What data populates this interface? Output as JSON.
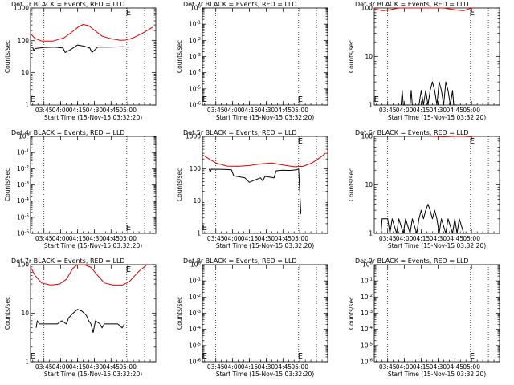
{
  "chart_data": [
    {
      "type": "line",
      "title": "Det 1r BLACK = Events, RED = LLD",
      "xlabel": "Start Time (15-Nov-15 03:32:20)",
      "ylabel": "Counts/sec",
      "yscale": "log",
      "ylim": [
        1,
        1000
      ],
      "yticks": [
        "1",
        "10",
        "100",
        "1000"
      ],
      "xticks": [
        "03:45",
        "04:00",
        "04:15",
        "04:30",
        "04:45",
        "05:00"
      ],
      "xlim": [
        -12,
        100
      ],
      "markers": [
        {
          "x": -10,
          "label": "E"
        },
        {
          "x": 75.5,
          "label": "E"
        }
      ],
      "vlines": [
        0,
        74,
        90
      ],
      "series": [
        {
          "name": "RED",
          "color": "#dd0000",
          "points": [
            [
              -12,
              160
            ],
            [
              -8,
              115
            ],
            [
              -2,
              95
            ],
            [
              8,
              95
            ],
            [
              18,
              120
            ],
            [
              25,
              180
            ],
            [
              31,
              265
            ],
            [
              35,
              310
            ],
            [
              40,
              285
            ],
            [
              46,
              195
            ],
            [
              52,
              135
            ],
            [
              60,
              112
            ],
            [
              68,
              100
            ],
            [
              73,
              102
            ],
            [
              80,
              120
            ],
            [
              88,
              165
            ],
            [
              97,
              255
            ]
          ]
        },
        {
          "name": "BLACK",
          "color": "#000000",
          "points": [
            [
              -10,
              60
            ],
            [
              -9,
              47
            ],
            [
              -8,
              56
            ],
            [
              0,
              60
            ],
            [
              10,
              62
            ],
            [
              17,
              58
            ],
            [
              19,
              42
            ],
            [
              25,
              55
            ],
            [
              30,
              72
            ],
            [
              36,
              66
            ],
            [
              41,
              58
            ],
            [
              43,
              42
            ],
            [
              48,
              62
            ],
            [
              60,
              62
            ],
            [
              70,
              64
            ],
            [
              76,
              62
            ]
          ]
        }
      ]
    },
    {
      "type": "line",
      "title": "Det 2r BLACK = Events, RED = LLD",
      "xlabel": "Start Time (15-Nov-15 03:32:20)",
      "ylabel": "Counts/sec",
      "yscale": "log",
      "ylim": [
        1e-06,
        1
      ],
      "yticks": [
        "10^-6",
        "10^-5",
        "10^-4",
        "10^-3",
        "10^-2",
        "10^-1",
        "10^0"
      ],
      "xticks": [
        "03:45",
        "04:00",
        "04:15",
        "04:30",
        "04:45",
        "05:00"
      ],
      "xlim": [
        -12,
        100
      ],
      "markers": [
        {
          "x": -10,
          "label": "E"
        },
        {
          "x": 75.5,
          "label": "E"
        }
      ],
      "vlines": [
        0,
        74,
        90
      ],
      "series": []
    },
    {
      "type": "line",
      "title": "Det 3r BLACK = Events, RED = LLD",
      "xlabel": "Start Time (15-Nov-15 03:32:20)",
      "ylabel": "Counts/sec",
      "yscale": "log",
      "ylim": [
        1,
        100
      ],
      "yticks": [
        "1",
        "10",
        "100"
      ],
      "xticks": [
        "03:45",
        "04:00",
        "04:15",
        "04:30",
        "04:45",
        "05:00"
      ],
      "xlim": [
        -12,
        100
      ],
      "markers": [
        {
          "x": -10,
          "label": "E"
        },
        {
          "x": 75.5,
          "label": "E"
        }
      ],
      "vlines": [
        0,
        74,
        90
      ],
      "series": [
        {
          "name": "RED",
          "color": "#dd0000",
          "points": [
            [
              -12,
              95
            ],
            [
              -4,
              88
            ],
            [
              2,
              92
            ],
            [
              10,
              100
            ],
            [
              50,
              100
            ],
            [
              60,
              92
            ],
            [
              68,
              88
            ],
            [
              72,
              95
            ],
            [
              76,
              100
            ]
          ]
        },
        {
          "name": "BLACK",
          "color": "#000000",
          "points": [
            [
              12,
              1
            ],
            [
              13,
              2
            ],
            [
              14,
              1
            ],
            [
              20,
              1
            ],
            [
              21,
              2
            ],
            [
              22,
              1
            ],
            [
              28,
              1
            ],
            [
              30,
              2
            ],
            [
              32,
              1
            ],
            [
              34,
              2
            ],
            [
              36,
              1
            ],
            [
              38,
              2
            ],
            [
              40,
              3
            ],
            [
              42,
              2
            ],
            [
              44,
              1
            ],
            [
              46,
              3
            ],
            [
              48,
              2
            ],
            [
              50,
              1
            ],
            [
              52,
              3
            ],
            [
              54,
              2
            ],
            [
              56,
              1
            ],
            [
              58,
              2
            ],
            [
              59,
              1
            ],
            [
              62,
              1
            ]
          ]
        }
      ]
    },
    {
      "type": "line",
      "title": "Det 4r BLACK = Events, RED = LLD",
      "xlabel": "Start Time (15-Nov-15 03:32:20)",
      "ylabel": "Counts/sec",
      "yscale": "log",
      "ylim": [
        1e-06,
        1
      ],
      "yticks": [
        "10^-6",
        "10^-5",
        "10^-4",
        "10^-3",
        "10^-2",
        "10^-1",
        "10^0"
      ],
      "xticks": [
        "03:45",
        "04:00",
        "04:15",
        "04:30",
        "04:45",
        "05:00"
      ],
      "xlim": [
        -12,
        100
      ],
      "markers": [
        {
          "x": 75.5,
          "label": "E"
        }
      ],
      "vlines": [
        0,
        74,
        90
      ],
      "series": []
    },
    {
      "type": "line",
      "title": "Det 5r BLACK = Events, RED = LLD",
      "xlabel": "Start Time (15-Nov-15 03:32:20)",
      "ylabel": "Counts/sec",
      "yscale": "log",
      "ylim": [
        1,
        1000
      ],
      "yticks": [
        "1",
        "10",
        "100",
        "1000"
      ],
      "xticks": [
        "03:45",
        "04:00",
        "04:15",
        "04:30",
        "04:45",
        "05:00"
      ],
      "xlim": [
        -12,
        100
      ],
      "markers": [
        {
          "x": -10,
          "label": "E"
        },
        {
          "x": 75.5,
          "label": "E"
        }
      ],
      "vlines": [
        0,
        74,
        90
      ],
      "series": [
        {
          "name": "RED",
          "color": "#dd0000",
          "points": [
            [
              -12,
              270
            ],
            [
              -6,
              200
            ],
            [
              0,
              150
            ],
            [
              10,
              120
            ],
            [
              20,
              118
            ],
            [
              30,
              125
            ],
            [
              40,
              140
            ],
            [
              50,
              150
            ],
            [
              60,
              130
            ],
            [
              70,
              115
            ],
            [
              78,
              118
            ],
            [
              86,
              150
            ],
            [
              94,
              230
            ],
            [
              98,
              300
            ]
          ]
        },
        {
          "name": "BLACK",
          "color": "#000000",
          "points": [
            [
              -6,
              98
            ],
            [
              -5,
              78
            ],
            [
              -4,
              96
            ],
            [
              8,
              95
            ],
            [
              14,
              92
            ],
            [
              16,
              60
            ],
            [
              22,
              55
            ],
            [
              26,
              52
            ],
            [
              30,
              38
            ],
            [
              35,
              45
            ],
            [
              40,
              52
            ],
            [
              42,
              42
            ],
            [
              44,
              58
            ],
            [
              52,
              52
            ],
            [
              54,
              86
            ],
            [
              60,
              90
            ],
            [
              66,
              88
            ],
            [
              72,
              92
            ],
            [
              74,
              98
            ],
            [
              76,
              4
            ]
          ]
        }
      ]
    },
    {
      "type": "line",
      "title": "Det 6r BLACK = Events, RED = LLD",
      "xlabel": "Start Time (15-Nov-15 03:32:20)",
      "ylabel": "Counts/sec",
      "yscale": "log",
      "ylim": [
        1,
        100
      ],
      "yticks": [
        "1",
        "10",
        "100"
      ],
      "xticks": [
        "03:45",
        "04:00",
        "04:15",
        "04:30",
        "04:45",
        "05:00"
      ],
      "xlim": [
        -12,
        100
      ],
      "markers": [
        {
          "x": 75.5,
          "label": "E"
        }
      ],
      "vlines": [
        0,
        74,
        90
      ],
      "series": [
        {
          "name": "RED",
          "color": "#dd0000",
          "points": [
            [
              40,
              100
            ],
            [
              50,
              98
            ],
            [
              60,
              100
            ],
            [
              68,
              100
            ],
            [
              74,
              98
            ],
            [
              76,
              100
            ]
          ]
        },
        {
          "name": "BLACK",
          "color": "#000000",
          "points": [
            [
              -6,
              1
            ],
            [
              -5,
              2
            ],
            [
              0,
              2
            ],
            [
              2,
              1
            ],
            [
              4,
              2
            ],
            [
              8,
              1
            ],
            [
              10,
              2
            ],
            [
              14,
              1
            ],
            [
              16,
              2
            ],
            [
              20,
              1
            ],
            [
              22,
              2
            ],
            [
              26,
              1
            ],
            [
              28,
              2
            ],
            [
              30,
              3
            ],
            [
              32,
              2
            ],
            [
              34,
              3
            ],
            [
              36,
              4
            ],
            [
              38,
              3
            ],
            [
              40,
              2
            ],
            [
              42,
              3
            ],
            [
              44,
              2
            ],
            [
              46,
              1
            ],
            [
              48,
              2
            ],
            [
              52,
              1
            ],
            [
              54,
              2
            ],
            [
              58,
              1
            ],
            [
              60,
              2
            ],
            [
              62,
              1
            ],
            [
              64,
              2
            ],
            [
              68,
              1
            ],
            [
              70,
              1
            ]
          ]
        }
      ]
    },
    {
      "type": "line",
      "title": "Det 7r BLACK = Events, RED = LLD",
      "xlabel": "Start Time (15-Nov-15 03:32:20)",
      "ylabel": "Counts/sec",
      "yscale": "log",
      "ylim": [
        1,
        100
      ],
      "yticks": [
        "1",
        "10",
        "100"
      ],
      "xticks": [
        "03:45",
        "04:00",
        "04:15",
        "04:30",
        "04:45",
        "05:00"
      ],
      "xlim": [
        -12,
        100
      ],
      "markers": [
        {
          "x": -10,
          "label": "E"
        },
        {
          "x": 75.5,
          "label": "E"
        }
      ],
      "vlines": [
        0,
        74,
        90
      ],
      "series": [
        {
          "name": "RED",
          "color": "#dd0000",
          "points": [
            [
              -12,
              90
            ],
            [
              -8,
              60
            ],
            [
              -2,
              42
            ],
            [
              6,
              38
            ],
            [
              14,
              40
            ],
            [
              20,
              50
            ],
            [
              26,
              85
            ],
            [
              30,
              100
            ],
            [
              36,
              100
            ],
            [
              42,
              88
            ],
            [
              48,
              60
            ],
            [
              54,
              42
            ],
            [
              62,
              38
            ],
            [
              70,
              38
            ],
            [
              76,
              44
            ],
            [
              84,
              70
            ],
            [
              92,
              100
            ]
          ]
        },
        {
          "name": "BLACK",
          "color": "#000000",
          "points": [
            [
              -7,
              5
            ],
            [
              -6,
              7
            ],
            [
              -4,
              6
            ],
            [
              0,
              6
            ],
            [
              6,
              6
            ],
            [
              12,
              6
            ],
            [
              16,
              7
            ],
            [
              20,
              6
            ],
            [
              22,
              8
            ],
            [
              26,
              10
            ],
            [
              30,
              12
            ],
            [
              34,
              11
            ],
            [
              38,
              9
            ],
            [
              40,
              7
            ],
            [
              42,
              6
            ],
            [
              44,
              4
            ],
            [
              46,
              7
            ],
            [
              50,
              6
            ],
            [
              52,
              5
            ],
            [
              54,
              6
            ],
            [
              60,
              6
            ],
            [
              66,
              6
            ],
            [
              70,
              5
            ],
            [
              72,
              6
            ]
          ]
        }
      ]
    },
    {
      "type": "line",
      "title": "Det 8r BLACK = Events, RED = LLD",
      "xlabel": "Start Time (15-Nov-15 03:32:20)",
      "ylabel": "Counts/sec",
      "yscale": "log",
      "ylim": [
        1e-06,
        1
      ],
      "yticks": [
        "10^-6",
        "10^-5",
        "10^-4",
        "10^-3",
        "10^-2",
        "10^-1",
        "10^0"
      ],
      "xticks": [
        "03:45",
        "04:00",
        "04:15",
        "04:30",
        "04:45",
        "05:00"
      ],
      "xlim": [
        -12,
        100
      ],
      "markers": [
        {
          "x": -10,
          "label": "E"
        },
        {
          "x": 75.5,
          "label": "E"
        }
      ],
      "vlines": [
        0,
        74,
        90
      ],
      "series": []
    },
    {
      "type": "line",
      "title": "Det 9r BLACK = Events, RED = LLD",
      "xlabel": "Start Time (15-Nov-15 03:32:20)",
      "ylabel": "Counts/sec",
      "yscale": "log",
      "ylim": [
        1e-06,
        1
      ],
      "yticks": [
        "10^-6",
        "10^-5",
        "10^-4",
        "10^-3",
        "10^-2",
        "10^-1",
        "10^0"
      ],
      "xticks": [
        "03:45",
        "04:00",
        "04:15",
        "04:30",
        "04:45",
        "05:00"
      ],
      "xlim": [
        -12,
        100
      ],
      "markers": [
        {
          "x": 75.5,
          "label": "E"
        }
      ],
      "vlines": [
        0,
        74,
        90
      ],
      "series": []
    }
  ]
}
